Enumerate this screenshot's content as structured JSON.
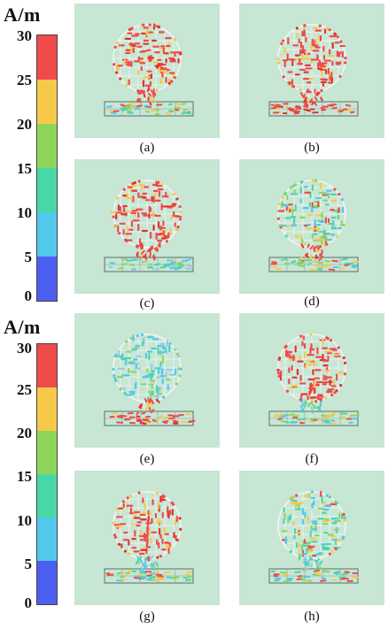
{
  "scales": [
    {
      "unit": "A/m",
      "ticks": [
        "30",
        "25",
        "20",
        "15",
        "10",
        "5",
        "0"
      ]
    },
    {
      "unit": "A/m",
      "ticks": [
        "30",
        "25",
        "20",
        "15",
        "10",
        "5",
        "0"
      ]
    }
  ],
  "colors": {
    "band_red": "#ef4b4b",
    "band_yellow": "#f6c94a",
    "band_green": "#8dd65a",
    "band_teal": "#48d8a8",
    "band_cyan": "#52c8ec",
    "band_blue": "#4d5ff0",
    "panel_bg": "#c7e6d4"
  },
  "panels": [
    {
      "caption": "(a)",
      "circle": "high",
      "feed": "high",
      "strip": "mixed"
    },
    {
      "caption": "(b)",
      "circle": "high",
      "feed": "high",
      "strip": "high"
    },
    {
      "caption": "(c)",
      "circle": "high",
      "feed": "high",
      "strip": "low"
    },
    {
      "caption": "(d)",
      "circle": "mixed",
      "feed": "high",
      "strip": "mixed"
    },
    {
      "caption": "(e)",
      "circle": "low",
      "feed": "high",
      "strip": "high"
    },
    {
      "caption": "(f)",
      "circle": "high",
      "feed": "low",
      "strip": "mixed"
    },
    {
      "caption": "(g)",
      "circle": "high",
      "feed": "low",
      "strip": "mixed"
    },
    {
      "caption": "(h)",
      "circle": "mixed",
      "feed": "low",
      "strip": "mixed"
    }
  ]
}
